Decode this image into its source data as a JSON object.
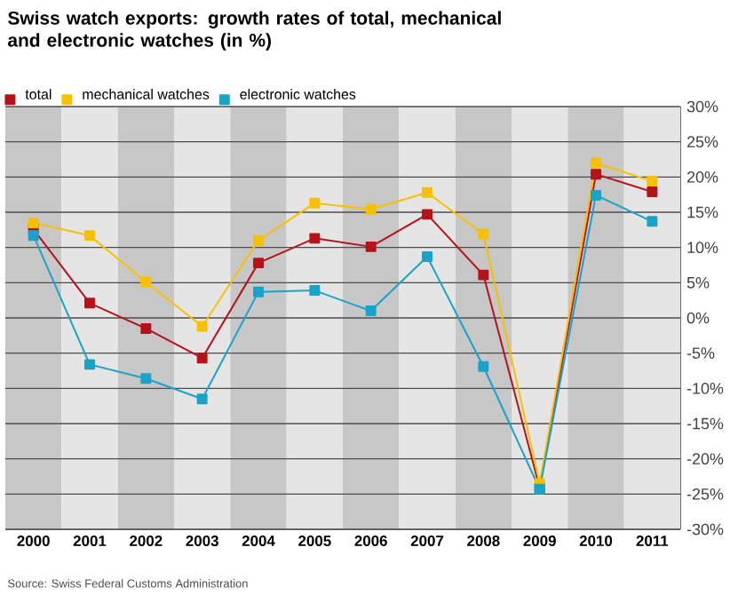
{
  "chart_data": {
    "type": "line",
    "title": "Swiss watch exports: growth rates of total, mechanical and electronic watches (in %)",
    "categories": [
      "2000",
      "2001",
      "2002",
      "2003",
      "2004",
      "2005",
      "2006",
      "2007",
      "2008",
      "2009",
      "2010",
      "2011"
    ],
    "series": [
      {
        "name": "total",
        "color": "#b5121b",
        "values": [
          12.6,
          2.1,
          -1.5,
          -5.7,
          7.8,
          11.3,
          10.1,
          14.7,
          6.1,
          -24.1,
          20.4,
          17.9
        ]
      },
      {
        "name": "mechanical watches",
        "color": "#f9c000",
        "values": [
          13.5,
          11.7,
          5.1,
          -1.2,
          11.0,
          16.3,
          15.4,
          17.8,
          11.9,
          -23.5,
          22.0,
          19.4
        ]
      },
      {
        "name": "electronic watches",
        "color": "#1aa3c8",
        "values": [
          11.7,
          -6.6,
          -8.6,
          -11.5,
          3.7,
          3.9,
          1.0,
          8.7,
          -6.9,
          -24.3,
          17.4,
          13.7
        ]
      }
    ],
    "ylim": [
      -30,
      30
    ],
    "yticks": [
      {
        "value": -30,
        "label": "-30%"
      },
      {
        "value": -25,
        "label": "-25%"
      },
      {
        "value": -20,
        "label": "-20%"
      },
      {
        "value": -15,
        "label": "-15%"
      },
      {
        "value": -10,
        "label": "-10%"
      },
      {
        "value": -5,
        "label": "-5%"
      },
      {
        "value": 0,
        "label": "0%"
      },
      {
        "value": 5,
        "label": "5%"
      },
      {
        "value": 10,
        "label": "10%"
      },
      {
        "value": 15,
        "label": "15%"
      },
      {
        "value": 20,
        "label": "20%"
      },
      {
        "value": 25,
        "label": "25%"
      },
      {
        "value": 30,
        "label": "30%"
      }
    ],
    "grid": "y",
    "legend": "top",
    "marker": "square",
    "line_style": "solid",
    "annotations": [
      "Source: Swiss Federal Customs Administration"
    ]
  }
}
